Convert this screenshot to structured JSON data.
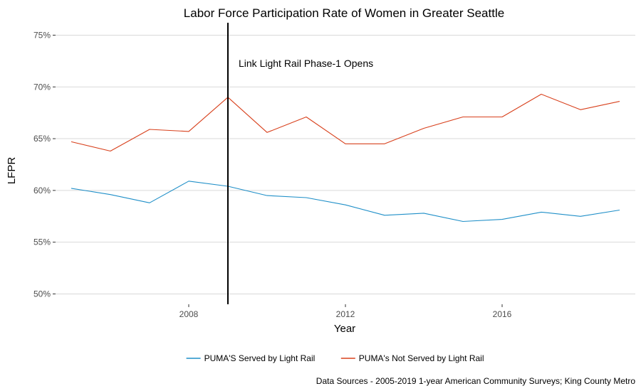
{
  "chart_data": {
    "type": "line",
    "title": "Labor Force Participation Rate of Women in Greater Seattle",
    "xlabel": "Year",
    "ylabel": "LFPR",
    "xlim": [
      2004.6,
      2019.4
    ],
    "ylim": [
      49,
      76.2
    ],
    "x_ticks": [
      2008,
      2012,
      2016
    ],
    "x_tick_labels": [
      "2008",
      "2012",
      "2016"
    ],
    "y_ticks": [
      50,
      55,
      60,
      65,
      70,
      75
    ],
    "y_tick_labels": [
      "50%",
      "55%",
      "60%",
      "65%",
      "70%",
      "75%"
    ],
    "grid": "horizontal",
    "legend_position": "bottom",
    "x": [
      2005,
      2006,
      2007,
      2008,
      2009,
      2010,
      2011,
      2012,
      2013,
      2014,
      2015,
      2016,
      2017,
      2018,
      2019
    ],
    "series": [
      {
        "name": "PUMA'S Served by Light Rail",
        "color": "#1f8fc8",
        "values": [
          60.2,
          59.6,
          58.8,
          60.9,
          60.4,
          59.5,
          59.3,
          58.6,
          57.6,
          57.8,
          57.0,
          57.2,
          57.9,
          57.5,
          58.1
        ]
      },
      {
        "name": "PUMA's Not Served by Light Rail",
        "color": "#d8401c",
        "values": [
          64.7,
          63.8,
          65.9,
          65.7,
          69.0,
          65.6,
          67.1,
          64.5,
          64.5,
          66.0,
          67.1,
          67.1,
          69.3,
          67.8,
          68.6
        ]
      }
    ],
    "vline": {
      "x": 2009,
      "color": "#000000",
      "label": "Link Light Rail Phase-1 Opens"
    },
    "caption": "Data Sources - 2005-2019 1-year American Community Surveys; King County Metro"
  }
}
